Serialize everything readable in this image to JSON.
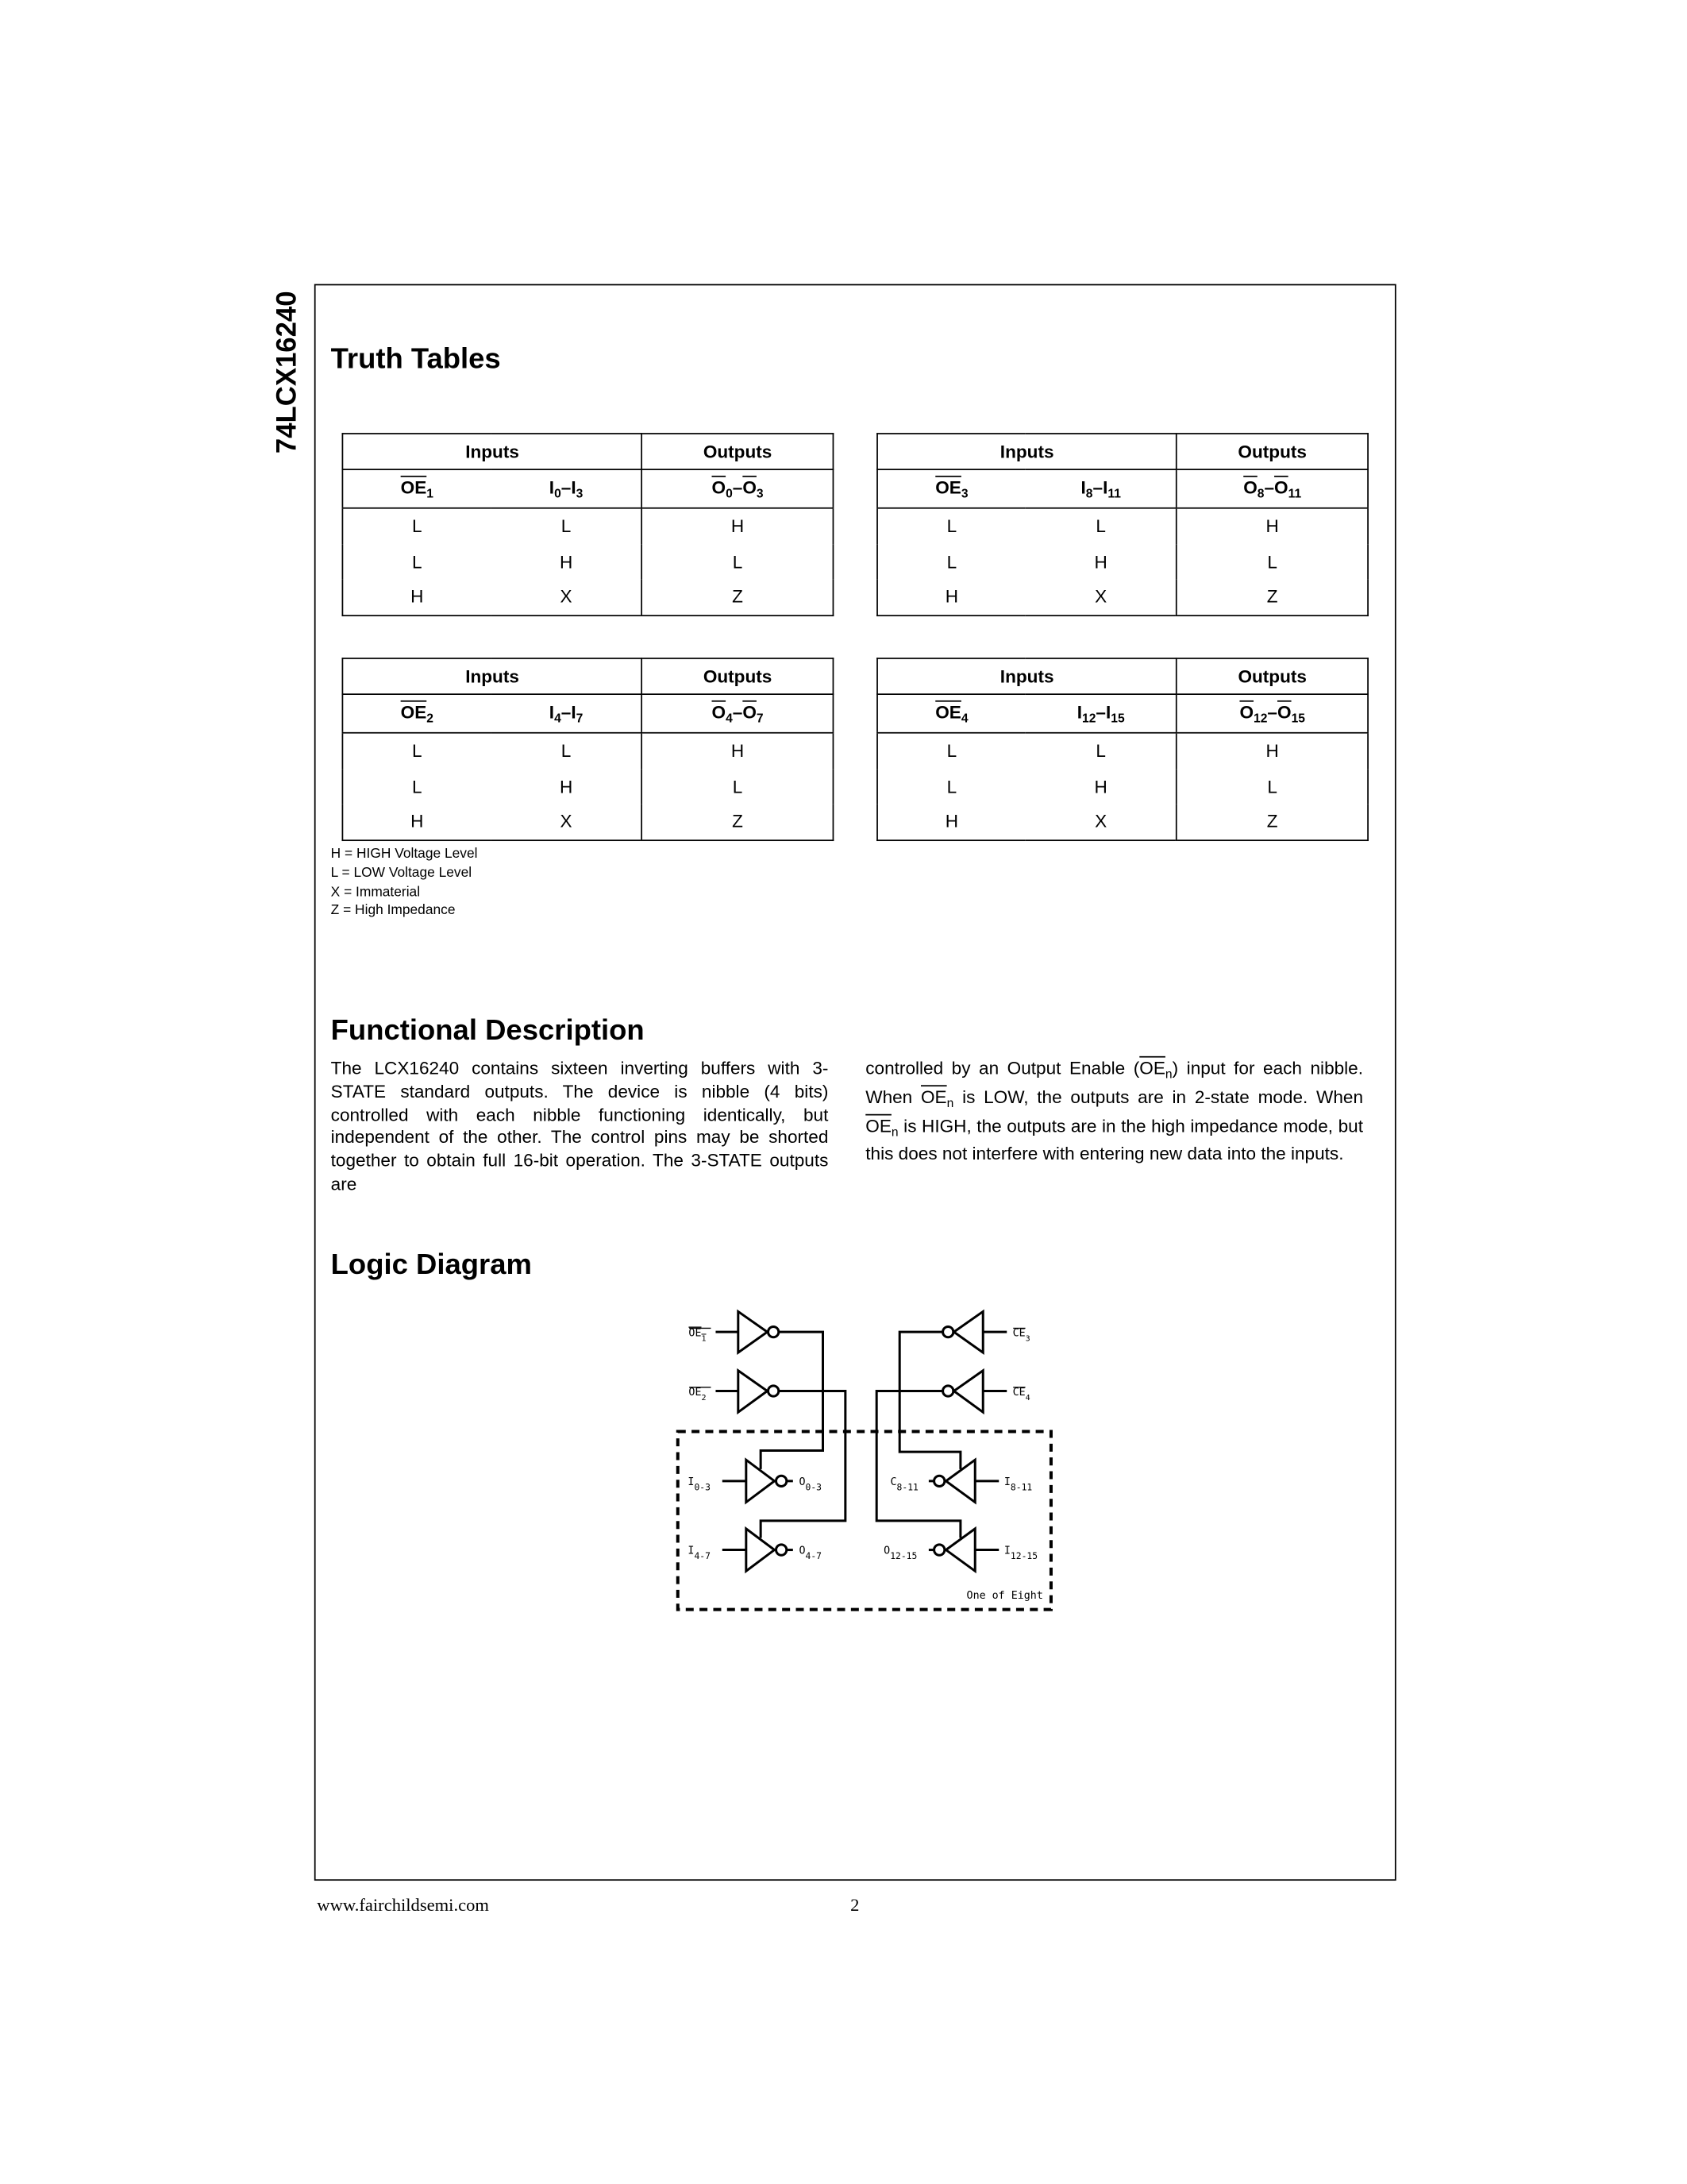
{
  "side_title": "74LCX16240",
  "truth_tables": {
    "title": "Truth Tables",
    "tables": [
      {
        "inputs": "Inputs",
        "outputs": "Outputs",
        "oe": "OE",
        "oe_sub": "1",
        "in": "I",
        "in_sub_a": "0",
        "in_sub_b": "3",
        "out": "O",
        "out_sub_a": "0",
        "out_sub_b": "3",
        "rows": [
          [
            "L",
            "L",
            "H"
          ],
          [
            "L",
            "H",
            "L"
          ],
          [
            "H",
            "X",
            "Z"
          ]
        ]
      },
      {
        "inputs": "Inputs",
        "outputs": "Outputs",
        "oe": "OE",
        "oe_sub": "3",
        "in": "I",
        "in_sub_a": "8",
        "in_sub_b": "11",
        "out": "O",
        "out_sub_a": "8",
        "out_sub_b": "11",
        "rows": [
          [
            "L",
            "L",
            "H"
          ],
          [
            "L",
            "H",
            "L"
          ],
          [
            "H",
            "X",
            "Z"
          ]
        ]
      },
      {
        "inputs": "Inputs",
        "outputs": "Outputs",
        "oe": "OE",
        "oe_sub": "2",
        "in": "I",
        "in_sub_a": "4",
        "in_sub_b": "7",
        "out": "O",
        "out_sub_a": "4",
        "out_sub_b": "7",
        "rows": [
          [
            "L",
            "L",
            "H"
          ],
          [
            "L",
            "H",
            "L"
          ],
          [
            "H",
            "X",
            "Z"
          ]
        ]
      },
      {
        "inputs": "Inputs",
        "outputs": "Outputs",
        "oe": "OE",
        "oe_sub": "4",
        "in": "I",
        "in_sub_a": "12",
        "in_sub_b": "15",
        "out": "O",
        "out_sub_a": "12",
        "out_sub_b": "15",
        "rows": [
          [
            "L",
            "L",
            "H"
          ],
          [
            "L",
            "H",
            "L"
          ],
          [
            "H",
            "X",
            "Z"
          ]
        ]
      }
    ],
    "legend": [
      "H = HIGH Voltage Level",
      "L = LOW Voltage Level",
      "X = Immaterial",
      "Z = High Impedance"
    ]
  },
  "functional": {
    "title": "Functional Description",
    "col1": "The LCX16240 contains sixteen inverting buffers with 3-STATE standard outputs. The device is nibble (4 bits) controlled with each nibble functioning identically, but independent of the other. The control pins may be shorted together to obtain full 16-bit operation. The 3-STATE outputs are",
    "col2_a": "controlled by an Output Enable (",
    "col2_oe": "OE",
    "col2_n": "n",
    "col2_b": ") input for each nibble. When ",
    "col2_c": " is LOW, the outputs are in 2-state mode. When ",
    "col2_d": " is HIGH, the outputs are in the high impedance mode, but this does not interfere with entering new data into the inputs."
  },
  "logic": {
    "title": "Logic Diagram",
    "labels": {
      "oe1": "OE",
      "oe1s": "1",
      "oe2": "OE",
      "oe2s": "2",
      "oe3": "CE",
      "oe3s": "3",
      "oe4": "CE",
      "oe4s": "4",
      "i03": "I",
      "i03s": "0-3",
      "o03": "O",
      "o03s": "0-3",
      "i47": "I",
      "i47s": "4-7",
      "o47": "O",
      "o47s": "4-7",
      "o811": "C",
      "o811s": "8-11",
      "i811": "I",
      "i811s": "8-11",
      "o1215": "O",
      "o1215s": "12-15",
      "i1215": "I",
      "i1215s": "12-15",
      "caption": "One of Eight"
    }
  },
  "footer": {
    "url": "www.fairchildsemi.com",
    "page": "2"
  }
}
